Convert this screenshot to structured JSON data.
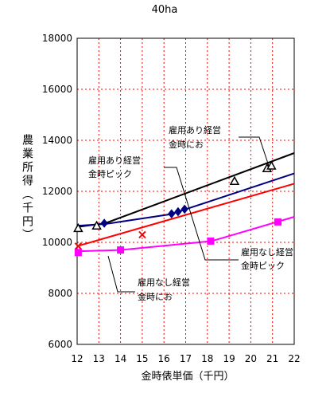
{
  "chart_data": {
    "type": "line",
    "title": "40ha",
    "xlabel": "金時俵単価（千円）",
    "ylabel": "農業所得（千円）",
    "xlim": [
      12,
      22
    ],
    "ylim": [
      6000,
      18000
    ],
    "x_ticks": [
      12,
      13,
      14,
      15,
      16,
      17,
      18,
      19,
      20,
      21,
      22
    ],
    "y_ticks": [
      6000,
      8000,
      10000,
      12000,
      14000,
      16000,
      18000
    ],
    "grid": true,
    "series": [
      {
        "name": "雇用あり経営金時にお",
        "color": "#000000",
        "marker": "triangle",
        "line": [
          [
            12,
            10600
          ],
          [
            13.3,
            10750
          ],
          [
            22,
            13500
          ]
        ],
        "points": [
          [
            12.05,
            10550
          ],
          [
            12.9,
            10650
          ],
          [
            19.25,
            12400
          ],
          [
            20.75,
            12900
          ],
          [
            20.95,
            13000
          ]
        ]
      },
      {
        "name": "雇用あり経営金時ピック",
        "color": "#000080",
        "marker": "diamond",
        "line": [
          [
            12,
            10650
          ],
          [
            13.3,
            10720
          ],
          [
            16.3,
            11100
          ],
          [
            22,
            12700
          ]
        ],
        "points": [
          [
            13.25,
            10750
          ],
          [
            16.35,
            11120
          ],
          [
            16.65,
            11200
          ],
          [
            16.95,
            11300
          ]
        ]
      },
      {
        "name": "雇用なし経営金時ピック",
        "color": "#ff0000",
        "marker": "cross",
        "line": [
          [
            12,
            9850
          ],
          [
            22,
            12300
          ]
        ],
        "points": [
          [
            12.05,
            9850
          ],
          [
            15.0,
            10300
          ]
        ]
      },
      {
        "name": "雇用なし経営金時にお",
        "color": "#ff00ff",
        "marker": "square",
        "line": [
          [
            12,
            9650
          ],
          [
            14.0,
            9700
          ],
          [
            18.2,
            10050
          ],
          [
            22,
            11000
          ]
        ],
        "points": [
          [
            12.05,
            9600
          ],
          [
            14.0,
            9700
          ],
          [
            18.15,
            10050
          ],
          [
            21.25,
            10800
          ]
        ]
      }
    ],
    "annotations": [
      {
        "lines": [
          "雇用あり経営",
          "金時にお"
        ],
        "series": "雇用あり経営金時にお"
      },
      {
        "lines": [
          "雇用あり経営",
          "金時ピック"
        ],
        "series": "雇用あり経営金時ピック"
      },
      {
        "lines": [
          "雇用なし経営",
          "金時ピック"
        ],
        "series": "雇用なし経営金時ピック"
      },
      {
        "lines": [
          "雇用なし経営",
          "金時にお"
        ],
        "series": "雇用なし経営金時にお"
      }
    ]
  }
}
